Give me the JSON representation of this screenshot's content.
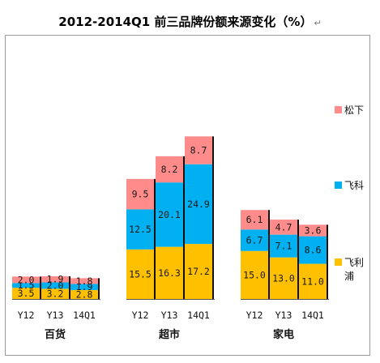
{
  "title": "2012-2014Q1 前三品牌份额来源变化（%）",
  "title_mark": "↵",
  "chart_data": {
    "type": "bar",
    "stacked": true,
    "title": "2012-2014Q1 前三品牌份额来源变化（%）",
    "groups": [
      "百货",
      "超市",
      "家电"
    ],
    "categories": [
      "Y12",
      "Y13",
      "14Q1"
    ],
    "series": [
      {
        "name": "飞利浦",
        "color": "#FFC000",
        "values": [
          [
            3.5,
            3.2,
            2.8
          ],
          [
            15.5,
            16.3,
            17.2
          ],
          [
            15.0,
            13.0,
            11.0
          ]
        ]
      },
      {
        "name": "飞科",
        "color": "#00B0F0",
        "values": [
          [
            1.5,
            2.0,
            1.9
          ],
          [
            12.5,
            20.1,
            24.9
          ],
          [
            6.7,
            7.1,
            8.6
          ]
        ]
      },
      {
        "name": "松下",
        "color": "#FF8B8B",
        "values": [
          [
            2.0,
            1.9,
            1.8
          ],
          [
            9.5,
            8.2,
            8.7
          ],
          [
            6.1,
            4.7,
            3.6
          ]
        ]
      }
    ],
    "labels": [
      [
        [
          "3.5",
          "1.5",
          "2.0"
        ],
        [
          "3.2",
          "2.0",
          "1.9"
        ],
        [
          "2.8",
          "1.9",
          "1.8"
        ]
      ],
      [
        [
          "15.5",
          "12.5",
          "9.5"
        ],
        [
          "16.3",
          "20.1",
          "8.2"
        ],
        [
          "17.2",
          "24.9",
          "8.7"
        ]
      ],
      [
        [
          "15.0",
          "6.7",
          "6.1"
        ],
        [
          "13.0",
          "7.1",
          "4.7"
        ],
        [
          "11.0",
          "8.6",
          "3.6"
        ]
      ]
    ],
    "legend": {
      "position": "right",
      "entries": [
        {
          "lines": [
            "松下"
          ],
          "color": "#FF8B8B"
        },
        {
          "lines": [
            "飞科"
          ],
          "color": "#00B0F0"
        },
        {
          "lines": [
            "飞利",
            "浦"
          ],
          "color": "#FFC000"
        }
      ]
    },
    "grid": false
  }
}
